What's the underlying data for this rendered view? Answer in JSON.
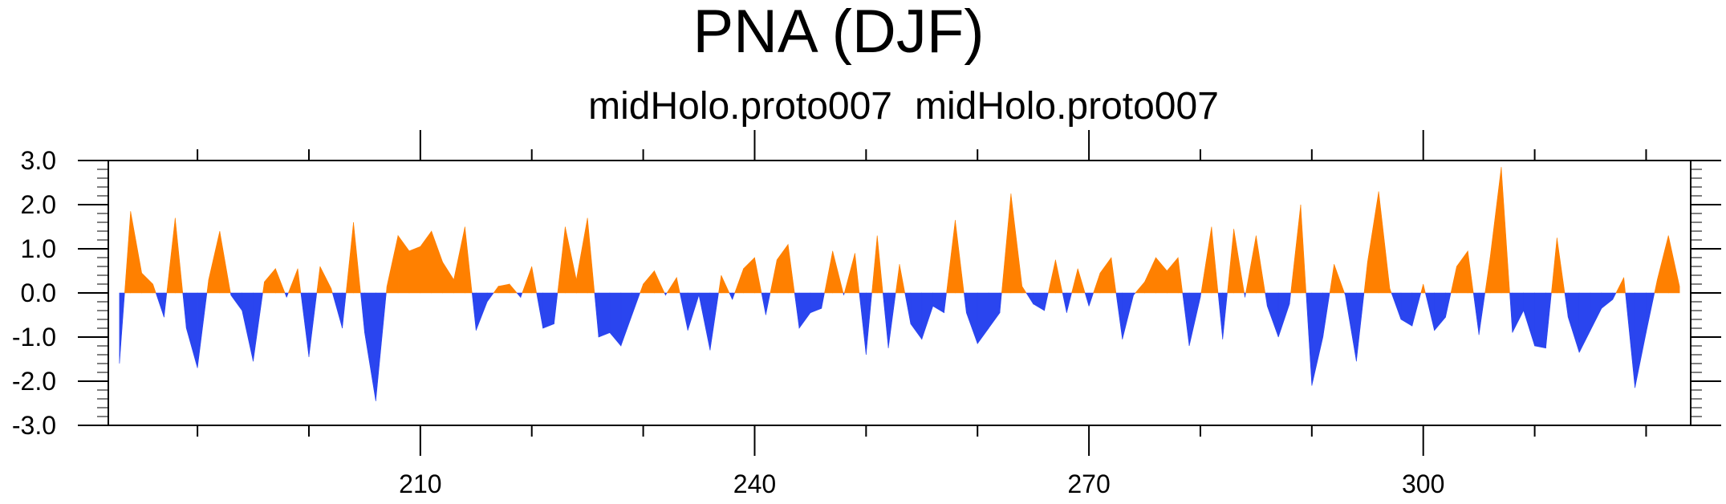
{
  "chart_data": {
    "type": "area",
    "title": "PNA (DJF)",
    "subtitle_left": "midHolo.proto007",
    "subtitle_right": "midHolo.proto007",
    "xlabel": "",
    "ylabel": "",
    "xlim": [
      182,
      324
    ],
    "ylim": [
      -3,
      3
    ],
    "x_ticks": [
      210,
      240,
      270,
      300
    ],
    "x_tick_labels": [
      "210",
      "240",
      "270",
      "300"
    ],
    "y_ticks": [
      -3,
      -2,
      -1,
      0,
      1,
      2,
      3
    ],
    "y_tick_labels": [
      "-3.0",
      "-2.0",
      "-1.0",
      "0.0",
      "1.0",
      "2.0",
      "3.0"
    ],
    "grid": false,
    "positive_color": "#ff8000",
    "negative_color": "#2a45ef",
    "start_year": 183,
    "values": [
      -1.6,
      1.85,
      0.45,
      0.2,
      -0.55,
      1.7,
      -0.8,
      -1.7,
      0.3,
      1.4,
      -0.05,
      -0.4,
      -1.55,
      0.25,
      0.55,
      -0.1,
      0.55,
      -1.45,
      0.6,
      0.1,
      -0.8,
      1.6,
      -0.9,
      -2.45,
      0.15,
      1.3,
      0.95,
      1.05,
      1.4,
      0.7,
      0.3,
      1.5,
      -0.85,
      -0.2,
      0.15,
      0.2,
      -0.1,
      0.6,
      -0.8,
      -0.7,
      1.5,
      0.3,
      1.7,
      -1.0,
      -0.9,
      -1.2,
      -0.5,
      0.2,
      0.5,
      -0.05,
      0.35,
      -0.85,
      -0.05,
      -1.3,
      0.4,
      -0.15,
      0.55,
      0.8,
      -0.5,
      0.75,
      1.1,
      -0.8,
      -0.45,
      -0.35,
      0.95,
      -0.05,
      0.9,
      -1.4,
      1.3,
      -1.25,
      0.65,
      -0.7,
      -1.05,
      -0.3,
      -0.45,
      1.65,
      -0.45,
      -1.15,
      -0.8,
      -0.45,
      2.25,
      0.15,
      -0.25,
      -0.4,
      0.75,
      -0.45,
      0.55,
      -0.3,
      0.45,
      0.8,
      -1.05,
      -0.05,
      0.25,
      0.8,
      0.5,
      0.8,
      -1.2,
      -0.1,
      1.5,
      -1.05,
      1.45,
      -0.1,
      1.3,
      -0.3,
      -1.0,
      -0.25,
      2.0,
      -2.1,
      -1.0,
      0.65,
      -0.05,
      -1.55,
      0.7,
      2.3,
      0.1,
      -0.6,
      -0.75,
      0.2,
      -0.85,
      -0.55,
      0.6,
      0.95,
      -0.95,
      0.8,
      2.85,
      -0.9,
      -0.4,
      -1.2,
      -1.25,
      1.25,
      -0.55,
      -1.35,
      -0.85,
      -0.35,
      -0.15,
      0.35,
      -2.15,
      -0.9,
      0.3,
      1.3,
      0.15
    ]
  }
}
